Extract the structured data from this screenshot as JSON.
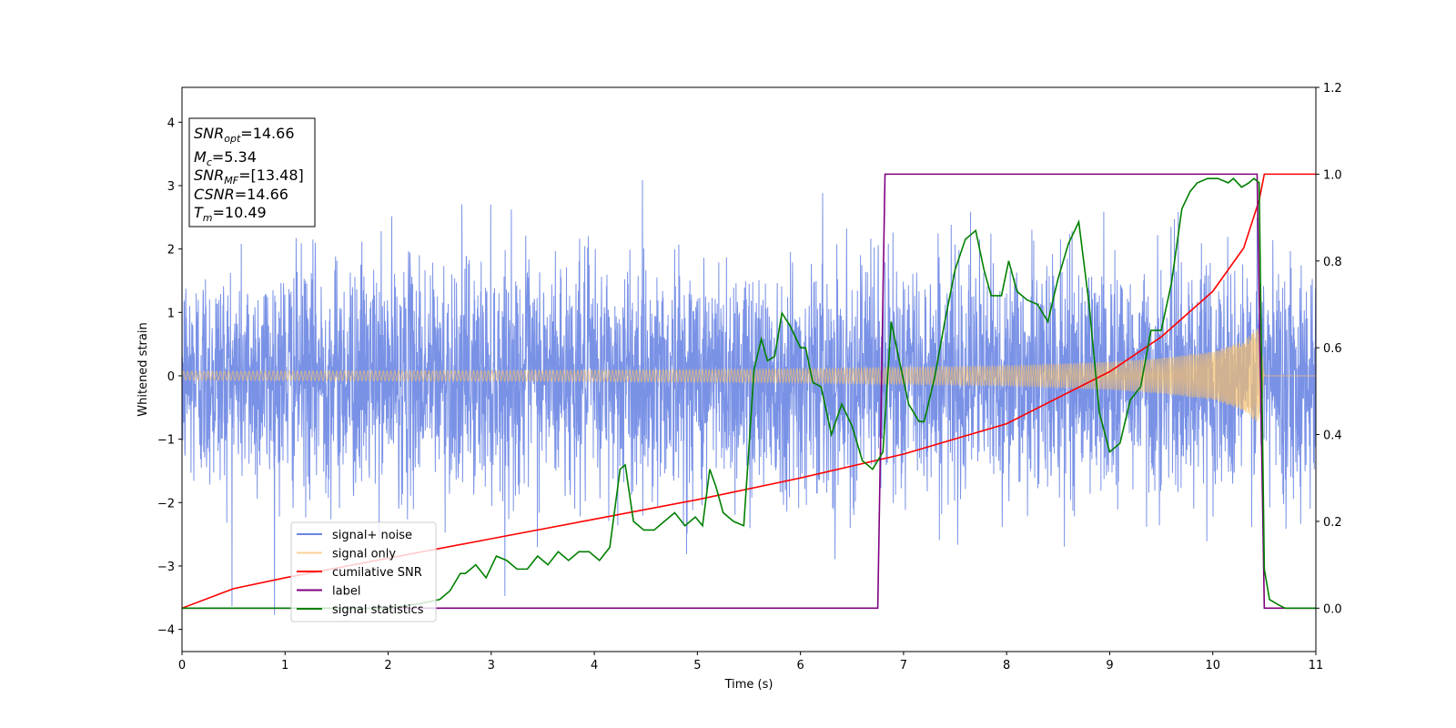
{
  "chart_data": {
    "type": "line",
    "xlabel": "Time (s)",
    "ylabel": "Whitened strain",
    "xlim": [
      0,
      11
    ],
    "ylim": [
      -4.35,
      4.55
    ],
    "y2lim": [
      -0.1,
      1.2
    ],
    "x_ticks": [
      "0",
      "1",
      "2",
      "3",
      "4",
      "5",
      "6",
      "7",
      "8",
      "9",
      "10",
      "11"
    ],
    "y_ticks": [
      "−4",
      "−3",
      "−2",
      "−1",
      "0",
      "1",
      "2",
      "3",
      "4"
    ],
    "y2_ticks": [
      "0.0",
      "0.2",
      "0.4",
      "0.6",
      "0.8",
      "1.0",
      "1.2"
    ],
    "legend_position": "lower-left",
    "info_box": {
      "snr_opt": "14.66",
      "mc": "5.34",
      "snr_mf": "[13.48]",
      "csnr": "14.66",
      "tm": "10.49"
    },
    "series": [
      {
        "name": "signal+ noise",
        "color": "#6b86e3",
        "axis": "left",
        "kind": "whitened noise, std ≈ 0.9, peaks within ±4.2, over 0–11 s"
      },
      {
        "name": "signal only",
        "color": "#f5c06e",
        "axis": "left",
        "kind": "chirp envelope",
        "envelope_x": [
          0,
          2,
          4,
          6,
          8,
          9,
          9.5,
          10,
          10.3,
          10.45,
          10.5,
          11
        ],
        "envelope_y": [
          0.07,
          0.08,
          0.09,
          0.11,
          0.16,
          0.22,
          0.28,
          0.38,
          0.55,
          0.78,
          0.0,
          0.0
        ]
      },
      {
        "name": "cumilative SNR",
        "color": "#ff0000",
        "axis": "right",
        "x": [
          0,
          0.5,
          1,
          2,
          3,
          4,
          5,
          6,
          7,
          8,
          9,
          9.5,
          10,
          10.3,
          10.45,
          10.5,
          11
        ],
        "y": [
          0.0,
          0.045,
          0.07,
          0.115,
          0.16,
          0.205,
          0.25,
          0.3,
          0.355,
          0.425,
          0.545,
          0.625,
          0.73,
          0.83,
          0.94,
          1.0,
          1.0
        ]
      },
      {
        "name": "label",
        "color": "#800080",
        "axis": "right",
        "x": [
          0,
          6.75,
          6.82,
          10.43,
          10.5,
          11
        ],
        "y": [
          0.0,
          0.0,
          1.0,
          1.0,
          0.0,
          0.0
        ]
      },
      {
        "name": "signal statistics",
        "color": "#008000",
        "axis": "right",
        "x": [
          0,
          1,
          2,
          2.3,
          2.5,
          2.6,
          2.7,
          2.75,
          2.85,
          2.95,
          3.05,
          3.15,
          3.25,
          3.35,
          3.45,
          3.55,
          3.65,
          3.75,
          3.85,
          3.95,
          4.05,
          4.15,
          4.25,
          4.3,
          4.38,
          4.48,
          4.58,
          4.68,
          4.78,
          4.88,
          4.98,
          5.05,
          5.12,
          5.18,
          5.25,
          5.35,
          5.45,
          5.55,
          5.62,
          5.68,
          5.75,
          5.82,
          5.9,
          6.0,
          6.05,
          6.12,
          6.2,
          6.3,
          6.4,
          6.5,
          6.6,
          6.7,
          6.8,
          6.88,
          6.95,
          7.05,
          7.15,
          7.2,
          7.3,
          7.4,
          7.5,
          7.6,
          7.7,
          7.78,
          7.85,
          7.95,
          8.02,
          8.1,
          8.2,
          8.3,
          8.4,
          8.5,
          8.6,
          8.7,
          8.8,
          8.9,
          9.0,
          9.1,
          9.2,
          9.3,
          9.4,
          9.5,
          9.6,
          9.7,
          9.78,
          9.85,
          9.95,
          10.05,
          10.15,
          10.2,
          10.28,
          10.35,
          10.4,
          10.45,
          10.5,
          10.55,
          10.62,
          10.7,
          10.8,
          11
        ],
        "y": [
          0.0,
          0.0,
          0.0,
          0.01,
          0.02,
          0.04,
          0.08,
          0.08,
          0.1,
          0.07,
          0.12,
          0.11,
          0.09,
          0.09,
          0.12,
          0.1,
          0.13,
          0.11,
          0.13,
          0.13,
          0.11,
          0.14,
          0.32,
          0.33,
          0.2,
          0.18,
          0.18,
          0.2,
          0.22,
          0.19,
          0.21,
          0.19,
          0.32,
          0.28,
          0.22,
          0.2,
          0.19,
          0.55,
          0.62,
          0.57,
          0.58,
          0.68,
          0.65,
          0.6,
          0.6,
          0.52,
          0.51,
          0.4,
          0.47,
          0.42,
          0.34,
          0.32,
          0.36,
          0.66,
          0.58,
          0.47,
          0.43,
          0.43,
          0.53,
          0.66,
          0.78,
          0.85,
          0.87,
          0.78,
          0.72,
          0.72,
          0.8,
          0.73,
          0.71,
          0.7,
          0.66,
          0.76,
          0.84,
          0.89,
          0.7,
          0.45,
          0.36,
          0.38,
          0.48,
          0.51,
          0.64,
          0.64,
          0.75,
          0.92,
          0.96,
          0.98,
          0.99,
          0.99,
          0.98,
          0.99,
          0.97,
          0.98,
          0.99,
          0.98,
          0.09,
          0.02,
          0.01,
          0.0,
          0.0,
          0.0
        ]
      }
    ]
  }
}
